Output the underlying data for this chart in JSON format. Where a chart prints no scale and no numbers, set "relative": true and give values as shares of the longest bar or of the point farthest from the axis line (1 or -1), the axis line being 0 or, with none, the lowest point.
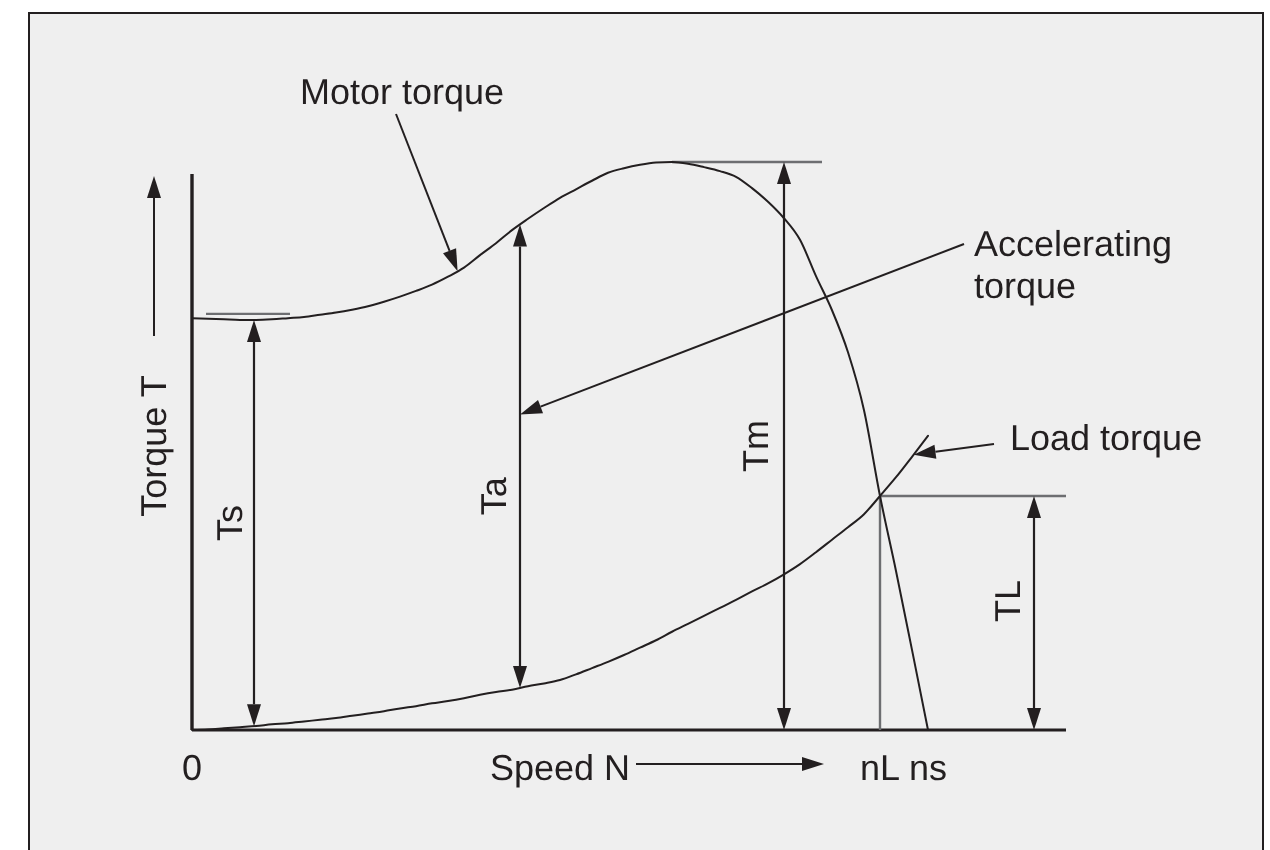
{
  "chart_data": {
    "type": "line",
    "relative": true,
    "xlabel": "Speed N",
    "ylabel": "Torque T",
    "categories": [
      "0",
      null,
      null,
      null,
      null,
      null,
      null,
      null,
      null,
      null,
      null,
      null,
      null,
      null,
      null,
      null,
      null,
      null,
      null,
      null,
      null,
      null,
      null,
      null,
      null,
      null,
      null,
      null,
      null,
      null,
      null,
      null,
      null,
      null,
      null,
      null,
      null,
      null,
      null,
      null,
      null,
      null,
      null,
      "nL",
      null,
      null,
      "ns"
    ],
    "series": [
      {
        "name": "Motor torque",
        "color": "#231f20",
        "values": [
          0.725,
          0.724,
          0.723,
          0.722,
          0.722,
          0.723,
          0.725,
          0.727,
          0.731,
          0.735,
          0.74,
          0.746,
          0.754,
          0.763,
          0.773,
          0.784,
          0.798,
          0.814,
          0.836,
          0.857,
          0.88,
          0.9,
          0.919,
          0.937,
          0.952,
          0.967,
          0.981,
          0.989,
          0.995,
          0.999,
          1.0,
          0.997,
          0.991,
          0.984,
          0.974,
          0.954,
          0.93,
          0.901,
          0.863,
          0.799,
          0.739,
          0.665,
          0.563,
          0.412,
          0.28,
          0.141,
          0
        ]
      },
      {
        "name": "Load torque",
        "color": "#231f20",
        "values": [
          0,
          0.001,
          0.003,
          0.005,
          0.007,
          0.01,
          0.012,
          0.015,
          0.018,
          0.021,
          0.025,
          0.029,
          0.033,
          0.038,
          0.042,
          0.047,
          0.051,
          0.056,
          0.062,
          0.067,
          0.071,
          0.077,
          0.082,
          0.088,
          0.098,
          0.109,
          0.12,
          0.132,
          0.145,
          0.158,
          0.173,
          0.187,
          0.201,
          0.215,
          0.229,
          0.244,
          0.258,
          0.274,
          0.292,
          0.313,
          0.335,
          0.357,
          0.38,
          0.412,
          0.445,
          0.481,
          0.518
        ]
      }
    ],
    "annotations": [
      "Accelerating torque",
      "Ts",
      "Ta",
      "Tm",
      "TL"
    ]
  }
}
